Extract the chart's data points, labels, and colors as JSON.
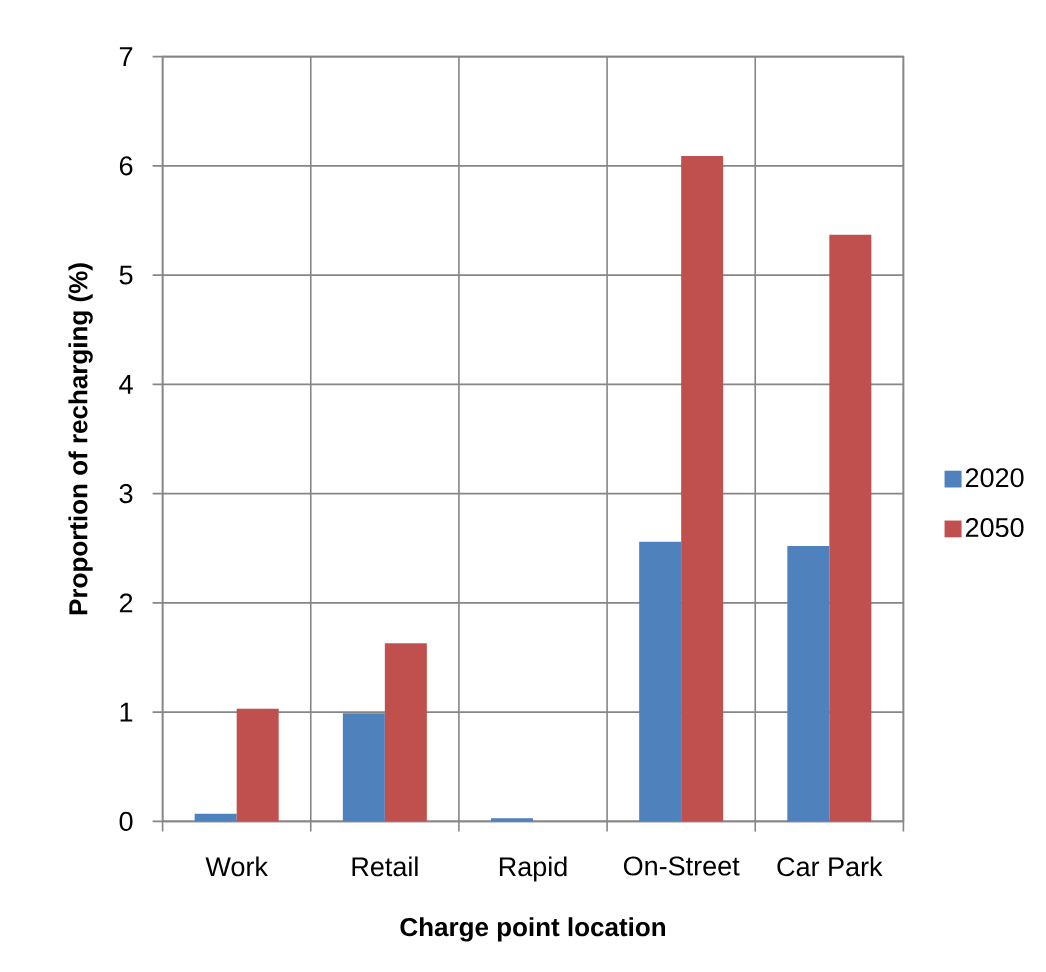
{
  "chart_data": {
    "type": "bar",
    "xlabel": "Charge point location",
    "ylabel": "Proportion of recharging (%)",
    "categories": [
      "Work",
      "Retail",
      "Rapid",
      "On-Street",
      "Car Park"
    ],
    "series": [
      {
        "name": "2020",
        "color": "#4f81bd",
        "values": [
          0.07,
          0.99,
          0.03,
          2.56,
          2.52
        ]
      },
      {
        "name": "2050",
        "color": "#c0504d",
        "values": [
          1.03,
          1.63,
          0,
          6.09,
          5.37
        ]
      }
    ],
    "ylim": [
      0,
      7
    ],
    "yticks": [
      0,
      1,
      2,
      3,
      4,
      5,
      6,
      7
    ],
    "grid": true,
    "legend": "right"
  }
}
